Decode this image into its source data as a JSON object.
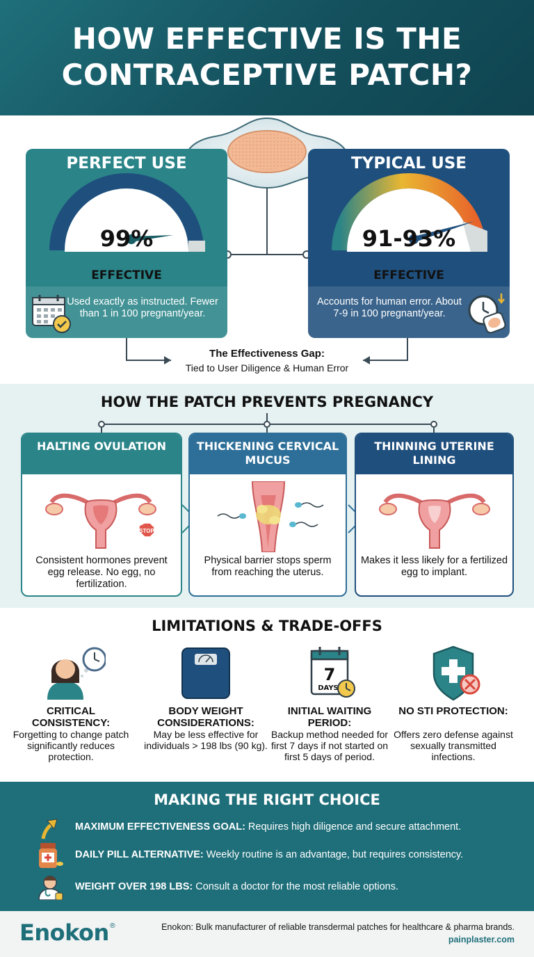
{
  "header": {
    "title": "HOW EFFECTIVE IS THE CONTRACEPTIVE PATCH?"
  },
  "colors": {
    "teal": "#2a8488",
    "navy": "#1f4f7d",
    "header_bg": "#14505d",
    "accent_orange": "#e8622a"
  },
  "effectiveness": {
    "perfect": {
      "title": "PERFECT USE",
      "percent": "99%",
      "label": "EFFECTIVE",
      "gauge_level": 0.99,
      "info": "Used exactly as instructed. Fewer than 1 in 100 pregnant/year.",
      "icon": "calendar-check-icon"
    },
    "typical": {
      "title": "TYPICAL USE",
      "percent": "91-93%",
      "label": "EFFECTIVE",
      "gauge_level": 0.92,
      "info": "Accounts for human error. About 7-9 in 100 pregnant/year.",
      "icon": "clock-patch-icon"
    },
    "gap_title": "The Effectiveness Gap:",
    "gap_subtitle": "Tied to User Diligence & Human Error"
  },
  "mechanism": {
    "title": "HOW THE PATCH PREVENTS PREGNANCY",
    "cards": [
      {
        "title": "HALTING OVULATION",
        "text": "Consistent hormones prevent egg release. No egg, no fertilization.",
        "stop_label": "STOP"
      },
      {
        "title": "THICKENING CERVICAL MUCUS",
        "text": "Physical barrier stops sperm from reaching the uterus."
      },
      {
        "title": "THINNING UTERINE LINING",
        "text": "Makes it less likely for a fertilized egg to implant."
      }
    ]
  },
  "limitations": {
    "title": "LIMITATIONS & TRADE-OFFS",
    "items": [
      {
        "title": "CRITICAL CONSISTENCY:",
        "text": "Forgetting to change patch significantly reduces protection.",
        "icon": "person-clock-icon"
      },
      {
        "title": "BODY WEIGHT CONSIDERATIONS:",
        "text": "May be less effective for individuals > 198 lbs (90 kg).",
        "icon": "scale-icon"
      },
      {
        "title": "INITIAL WAITING PERIOD:",
        "text": "Backup method needed for first 7 days if not started on first 5 days of period.",
        "icon": "calendar-7-days-icon",
        "calendar_number": "7",
        "calendar_label": "DAYS"
      },
      {
        "title": "NO STI PROTECTION:",
        "text": "Offers zero defense against sexually transmitted infections.",
        "icon": "shield-cross-icon"
      }
    ]
  },
  "choice": {
    "title": "MAKING THE RIGHT CHOICE",
    "rows": [
      {
        "bold": "MAXIMUM EFFECTIVENESS GOAL:",
        "text": " Requires high diligence and secure attachment.",
        "icon": "arrow-up-icon"
      },
      {
        "bold": "DAILY PILL ALTERNATIVE:",
        "text": " Weekly routine is an advantage, but requires consistency.",
        "icon": "pill-bottle-icon"
      },
      {
        "bold": "WEIGHT OVER 198 LBS:",
        "text": " Consult a doctor for the most reliable options.",
        "icon": "doctor-icon"
      }
    ]
  },
  "footer": {
    "brand": "Enokon",
    "registered": "®",
    "note": "Enokon: Bulk manufacturer of reliable transdermal patches for healthcare & pharma brands.",
    "url": "painplaster.com"
  }
}
